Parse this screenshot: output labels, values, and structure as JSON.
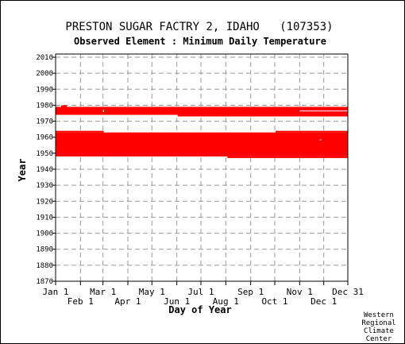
{
  "chart_data": {
    "type": "bar",
    "title": "PRESTON SUGAR FACTRY 2, IDAHO   (107353)",
    "subtitle": "Observed Element : Minimum Daily Temperature",
    "xlabel": "Day of Year",
    "ylabel": "Year",
    "xlim": [
      1,
      365
    ],
    "ylim": [
      1870,
      2012
    ],
    "grid": true,
    "y_ticks": [
      1870,
      1880,
      1890,
      1900,
      1910,
      1920,
      1930,
      1940,
      1950,
      1960,
      1970,
      1980,
      1990,
      2000,
      2010
    ],
    "x_ticks_top_row": [
      {
        "label": "Jan 1",
        "day": 1
      },
      {
        "label": "Mar 1",
        "day": 60
      },
      {
        "label": "May 1",
        "day": 121
      },
      {
        "label": "Jul 1",
        "day": 182
      },
      {
        "label": "Sep 1",
        "day": 244
      },
      {
        "label": "Nov 1",
        "day": 305
      },
      {
        "label": "Dec 31",
        "day": 365
      }
    ],
    "x_ticks_bottom_row": [
      {
        "label": "Feb 1",
        "day": 32
      },
      {
        "label": "Apr 1",
        "day": 91
      },
      {
        "label": "Jun 1",
        "day": 152
      },
      {
        "label": "Aug 1",
        "day": 213
      },
      {
        "label": "Oct 1",
        "day": 274
      },
      {
        "label": "Dec 1",
        "day": 335
      }
    ],
    "series": [
      {
        "color": "#ff0000",
        "segments": [
          {
            "day_start": 1,
            "day_end": 365,
            "year_start": 1948,
            "year_end": 1963
          },
          {
            "day_start": 215,
            "day_end": 365,
            "year_start": 1947,
            "year_end": 1948
          },
          {
            "day_start": 275,
            "day_end": 365,
            "year_start": 1963,
            "year_end": 1964
          },
          {
            "day_start": 1,
            "day_end": 61,
            "year_start": 1963,
            "year_end": 1964
          },
          {
            "day_start": 1,
            "day_end": 365,
            "year_start": 1974,
            "year_end": 1979
          },
          {
            "day_start": 153,
            "day_end": 365,
            "year_start": 1973,
            "year_end": 1974
          },
          {
            "day_start": 8,
            "day_end": 15,
            "year_start": 1979,
            "year_end": 1980
          }
        ],
        "gaps": [
          {
            "day_start": 305,
            "day_end": 365,
            "year_start": 1976,
            "year_end": 1977
          },
          {
            "day_start": 60,
            "day_end": 61,
            "year_start": 1974,
            "year_end": 1979
          },
          {
            "day_start": 330,
            "day_end": 332,
            "year_start": 1958,
            "year_end": 1959
          }
        ]
      }
    ]
  },
  "credit": [
    "Western",
    "Regional",
    "Climate",
    "Center"
  ]
}
